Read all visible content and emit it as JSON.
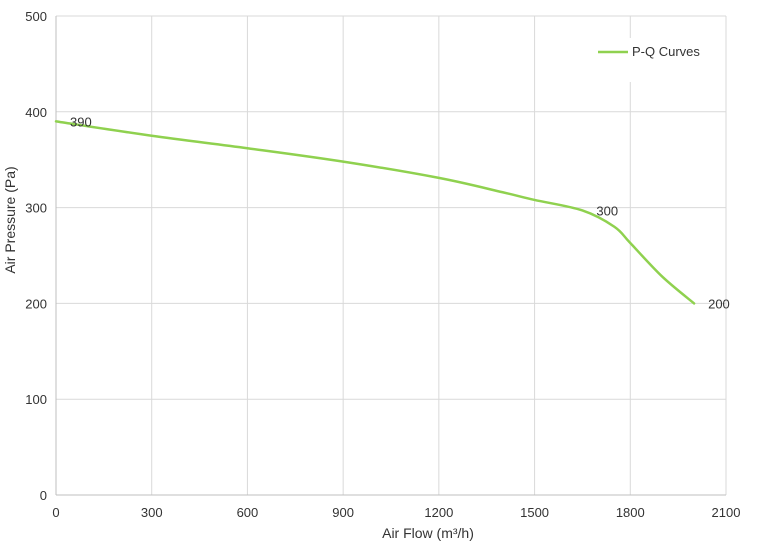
{
  "chart_data": {
    "type": "line",
    "x_ticks": [
      0,
      300,
      600,
      900,
      1200,
      1500,
      1800,
      2100
    ],
    "y_ticks": [
      0,
      100,
      200,
      300,
      400,
      500
    ],
    "xlim": [
      0,
      2100
    ],
    "ylim": [
      0,
      500
    ],
    "xlabel": "Air Flow  (m³/h)",
    "ylabel": "Air Pressure  (Pa)",
    "grid": true,
    "legend_position": "top-right",
    "series": [
      {
        "name": "P-Q Curves",
        "color": "#8fd14f",
        "x": [
          0,
          300,
          600,
          900,
          1200,
          1400,
          1500,
          1650,
          1750,
          1800,
          1900,
          2000
        ],
        "y": [
          390,
          375,
          362,
          348,
          331,
          316,
          308,
          297,
          280,
          263,
          228,
          200
        ]
      }
    ],
    "data_labels": [
      {
        "x": 0,
        "y": 390,
        "text": "390"
      },
      {
        "x": 1650,
        "y": 297,
        "text": "300"
      },
      {
        "x": 2000,
        "y": 200,
        "text": "200"
      }
    ]
  }
}
